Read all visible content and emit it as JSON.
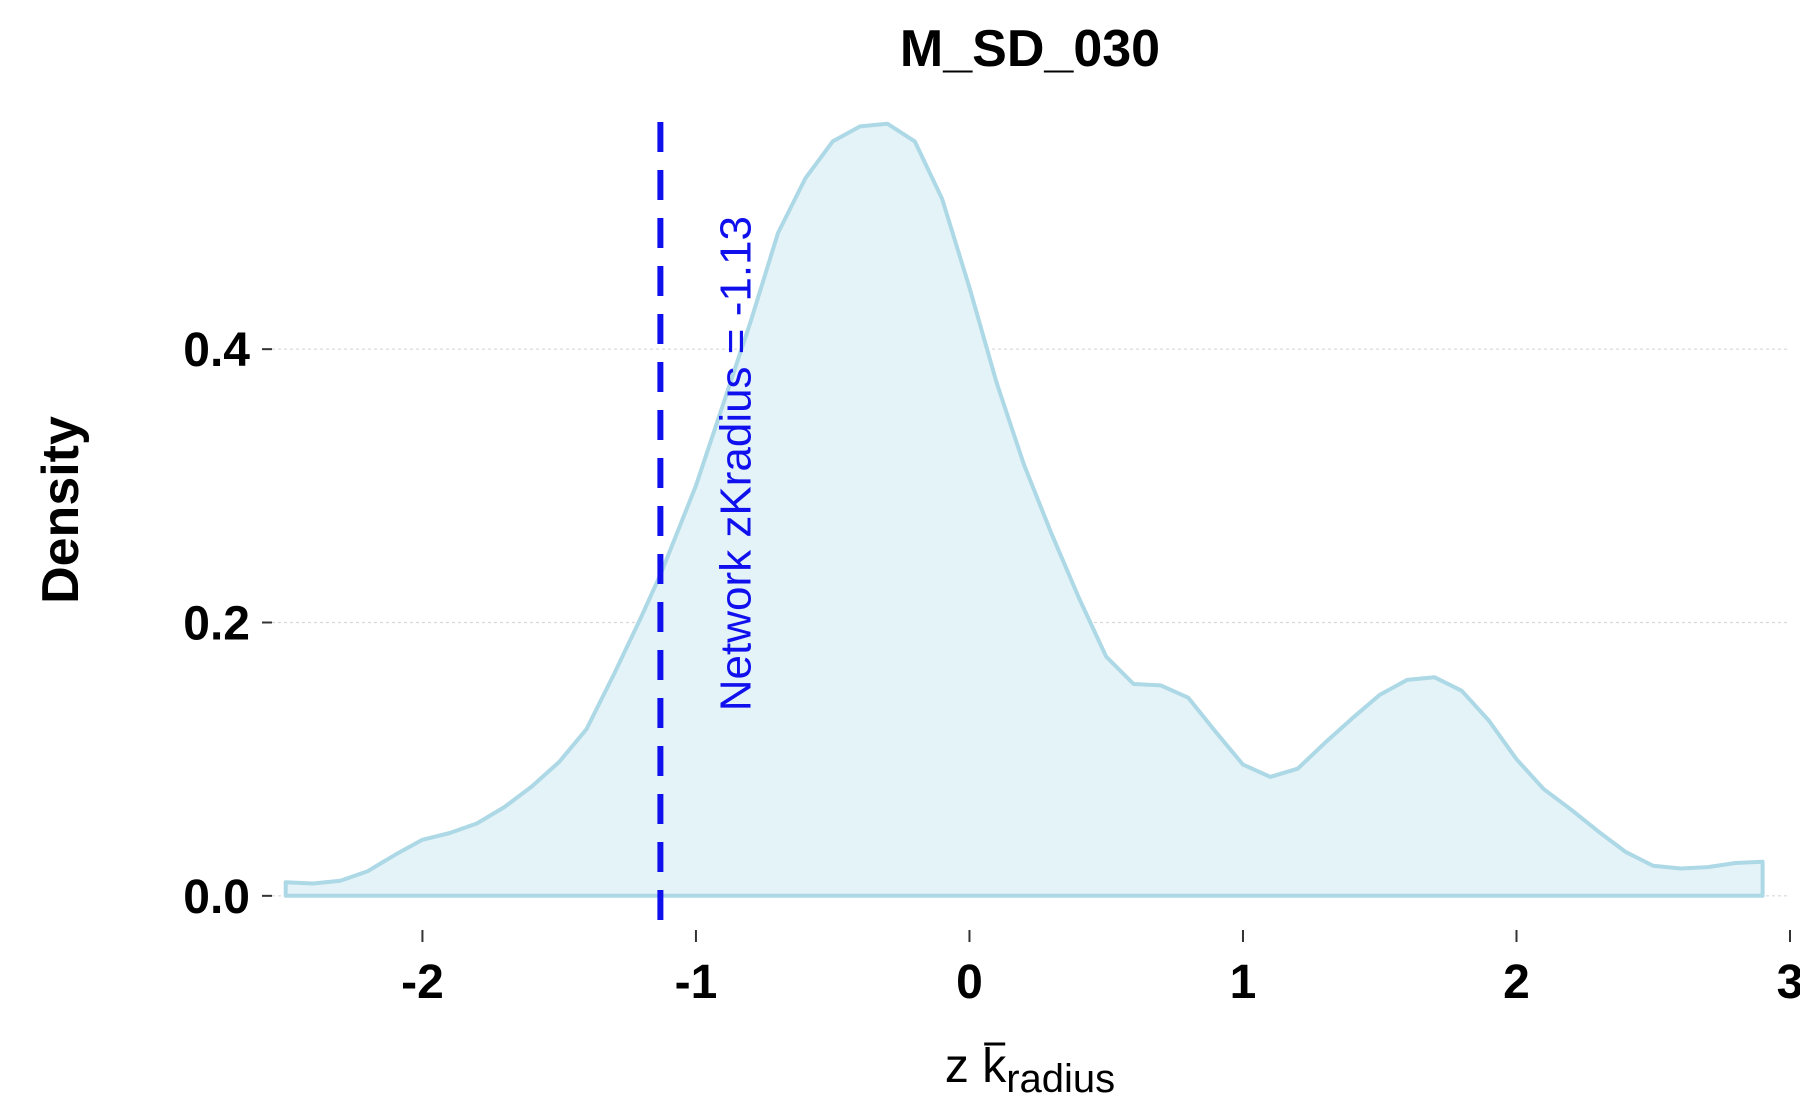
{
  "chart_data": {
    "type": "area",
    "title": "M_SD_030",
    "ylabel": "Density",
    "xlabel": {
      "main": "z ",
      "symbol": "k",
      "subscript": "radius"
    },
    "xlim": [
      -2.55,
      3.0
    ],
    "ylim": [
      -0.025,
      0.575
    ],
    "x_ticks": [
      -2,
      -1,
      0,
      1,
      2,
      3
    ],
    "y_ticks": [
      0.0,
      0.2,
      0.4
    ],
    "y_tick_labels": [
      "0.0",
      "0.2",
      "0.4"
    ],
    "grid": "horizontal",
    "series": [
      {
        "x": [
          -2.5,
          -2.4,
          -2.3,
          -2.2,
          -2.1,
          -2.0,
          -1.9,
          -1.8,
          -1.7,
          -1.6,
          -1.5,
          -1.4,
          -1.3,
          -1.2,
          -1.13,
          -1.0,
          -0.9,
          -0.8,
          -0.7,
          -0.6,
          -0.5,
          -0.4,
          -0.3,
          -0.2,
          -0.1,
          0.0,
          0.1,
          0.2,
          0.3,
          0.4,
          0.5,
          0.6,
          0.7,
          0.8,
          0.9,
          1.0,
          1.1,
          1.2,
          1.3,
          1.4,
          1.5,
          1.6,
          1.7,
          1.8,
          1.9,
          2.0,
          2.1,
          2.2,
          2.3,
          2.4,
          2.5,
          2.6,
          2.7,
          2.8,
          2.9
        ],
        "y": [
          0.01,
          0.009,
          0.011,
          0.018,
          0.03,
          0.041,
          0.046,
          0.053,
          0.065,
          0.08,
          0.098,
          0.122,
          0.162,
          0.204,
          0.235,
          0.3,
          0.36,
          0.42,
          0.485,
          0.525,
          0.552,
          0.563,
          0.565,
          0.552,
          0.51,
          0.445,
          0.375,
          0.315,
          0.265,
          0.218,
          0.175,
          0.155,
          0.154,
          0.145,
          0.12,
          0.096,
          0.087,
          0.093,
          0.112,
          0.13,
          0.147,
          0.158,
          0.16,
          0.15,
          0.128,
          0.1,
          0.078,
          0.063,
          0.047,
          0.032,
          0.022,
          0.02,
          0.021,
          0.024,
          0.025
        ]
      }
    ],
    "fill_color": "#e4f3f7",
    "line_color": "#add8e6",
    "reference_line": {
      "x": -1.13,
      "label": "Network zKradius = -1.13",
      "color": "#1010ee",
      "style": "dashed"
    }
  }
}
